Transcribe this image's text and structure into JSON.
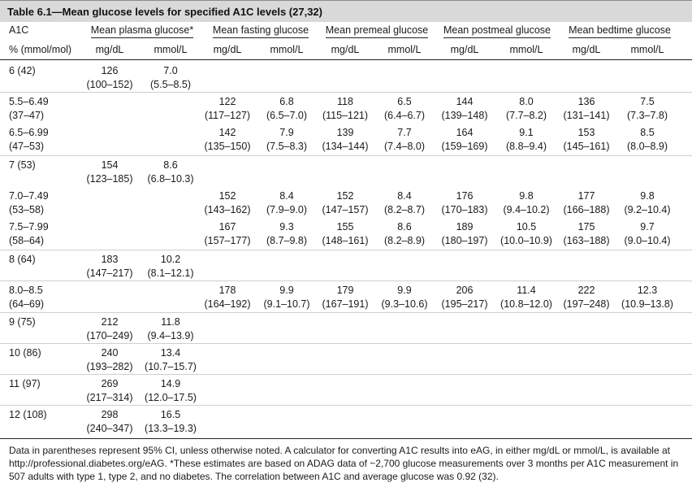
{
  "title": "Table 6.1—Mean glucose levels for specified A1C levels (27,32)",
  "headers": {
    "a1c": "A1C",
    "groups": [
      "Mean plasma glucose*",
      "Mean fasting glucose",
      "Mean premeal glucose",
      "Mean postmeal glucose",
      "Mean bedtime glucose"
    ],
    "a1c_unit": "% (mmol/mol)",
    "units": [
      "mg/dL",
      "mmol/L",
      "mg/dL",
      "mmol/L",
      "mg/dL",
      "mmol/L",
      "mg/dL",
      "mmol/L",
      "mg/dL",
      "mmol/L"
    ]
  },
  "rows": [
    {
      "a1c": "6 (42)",
      "a1c2": "",
      "cells": [
        [
          "126",
          "(100–152)"
        ],
        [
          "7.0",
          "(5.5–8.5)"
        ],
        null,
        null,
        null,
        null,
        null,
        null,
        null,
        null
      ]
    },
    {
      "a1c": "5.5–6.49",
      "a1c2": "(37–47)",
      "cells": [
        null,
        null,
        [
          "122",
          "(117–127)"
        ],
        [
          "6.8",
          "(6.5–7.0)"
        ],
        [
          "118",
          "(115–121)"
        ],
        [
          "6.5",
          "(6.4–6.7)"
        ],
        [
          "144",
          "(139–148)"
        ],
        [
          "8.0",
          "(7.7–8.2)"
        ],
        [
          "136",
          "(131–141)"
        ],
        [
          "7.5",
          "(7.3–7.8)"
        ]
      ]
    },
    {
      "a1c": "6.5–6.99",
      "a1c2": "(47–53)",
      "cells": [
        null,
        null,
        [
          "142",
          "(135–150)"
        ],
        [
          "7.9",
          "(7.5–8.3)"
        ],
        [
          "139",
          "(134–144)"
        ],
        [
          "7.7",
          "(7.4–8.0)"
        ],
        [
          "164",
          "(159–169)"
        ],
        [
          "9.1",
          "(8.8–9.4)"
        ],
        [
          "153",
          "(145–161)"
        ],
        [
          "8.5",
          "(8.0–8.9)"
        ]
      ]
    },
    {
      "a1c": "7 (53)",
      "a1c2": "",
      "cells": [
        [
          "154",
          "(123–185)"
        ],
        [
          "8.6",
          "(6.8–10.3)"
        ],
        null,
        null,
        null,
        null,
        null,
        null,
        null,
        null
      ]
    },
    {
      "a1c": "7.0–7.49",
      "a1c2": "(53–58)",
      "cells": [
        null,
        null,
        [
          "152",
          "(143–162)"
        ],
        [
          "8.4",
          "(7.9–9.0)"
        ],
        [
          "152",
          "(147–157)"
        ],
        [
          "8.4",
          "(8.2–8.7)"
        ],
        [
          "176",
          "(170–183)"
        ],
        [
          "9.8",
          "(9.4–10.2)"
        ],
        [
          "177",
          "(166–188)"
        ],
        [
          "9.8",
          "(9.2–10.4)"
        ]
      ]
    },
    {
      "a1c": "7.5–7.99",
      "a1c2": "(58–64)",
      "cells": [
        null,
        null,
        [
          "167",
          "(157–177)"
        ],
        [
          "9.3",
          "(8.7–9.8)"
        ],
        [
          "155",
          "(148–161)"
        ],
        [
          "8.6",
          "(8.2–8.9)"
        ],
        [
          "189",
          "(180–197)"
        ],
        [
          "10.5",
          "(10.0–10.9)"
        ],
        [
          "175",
          "(163–188)"
        ],
        [
          "9.7",
          "(9.0–10.4)"
        ]
      ]
    },
    {
      "a1c": "8 (64)",
      "a1c2": "",
      "cells": [
        [
          "183",
          "(147–217)"
        ],
        [
          "10.2",
          "(8.1–12.1)"
        ],
        null,
        null,
        null,
        null,
        null,
        null,
        null,
        null
      ]
    },
    {
      "a1c": "8.0–8.5",
      "a1c2": "(64–69)",
      "cells": [
        null,
        null,
        [
          "178",
          "(164–192)"
        ],
        [
          "9.9",
          "(9.1–10.7)"
        ],
        [
          "179",
          "(167–191)"
        ],
        [
          "9.9",
          "(9.3–10.6)"
        ],
        [
          "206",
          "(195–217)"
        ],
        [
          "11.4",
          "(10.8–12.0)"
        ],
        [
          "222",
          "(197–248)"
        ],
        [
          "12.3",
          "(10.9–13.8)"
        ]
      ]
    },
    {
      "a1c": "9 (75)",
      "a1c2": "",
      "cells": [
        [
          "212",
          "(170–249)"
        ],
        [
          "11.8",
          "(9.4–13.9)"
        ],
        null,
        null,
        null,
        null,
        null,
        null,
        null,
        null
      ]
    },
    {
      "a1c": "10 (86)",
      "a1c2": "",
      "cells": [
        [
          "240",
          "(193–282)"
        ],
        [
          "13.4",
          "(10.7–15.7)"
        ],
        null,
        null,
        null,
        null,
        null,
        null,
        null,
        null
      ]
    },
    {
      "a1c": "11 (97)",
      "a1c2": "",
      "cells": [
        [
          "269",
          "(217–314)"
        ],
        [
          "14.9",
          "(12.0–17.5)"
        ],
        null,
        null,
        null,
        null,
        null,
        null,
        null,
        null
      ]
    },
    {
      "a1c": "12 (108)",
      "a1c2": "",
      "cells": [
        [
          "298",
          "(240–347)"
        ],
        [
          "16.5",
          "(13.3–19.3)"
        ],
        null,
        null,
        null,
        null,
        null,
        null,
        null,
        null
      ]
    }
  ],
  "footnote": "Data in parentheses represent 95% CI, unless otherwise noted. A calculator for converting A1C results into eAG, in either mg/dL or mmol/L, is available at http://professional.diabetes.org/eAG. *These estimates are based on ADAG data of ~2,700 glucose measurements over 3 months per A1C measurement in 507 adults with type 1, type 2, and no diabetes. The correlation between A1C and average glucose was 0.92 (32).",
  "colors": {
    "title_band": "#d9d9d9",
    "rule": "#cfcfcf",
    "text": "#1a1a1a"
  }
}
